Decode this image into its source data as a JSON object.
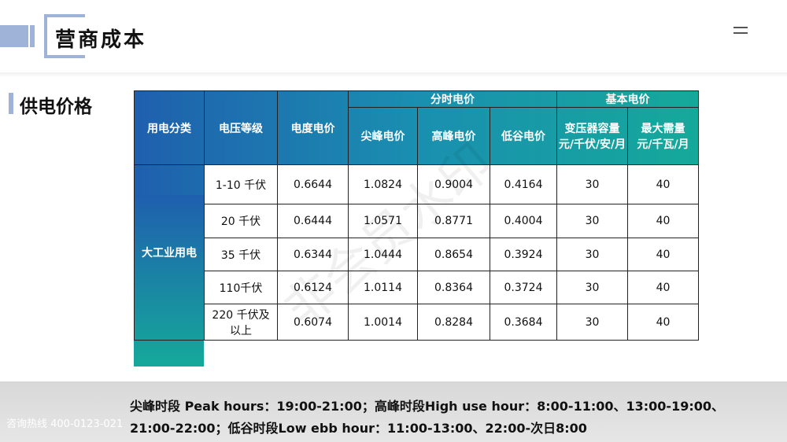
{
  "header": {
    "title": "营商成本"
  },
  "section": {
    "title": "供电价格"
  },
  "table": {
    "headers": {
      "category": "用电分类",
      "voltage": "电压等级",
      "energy": "电度电价",
      "tou": "分时电价",
      "basic": "基本电价",
      "peak": "尖峰电价",
      "high": "高峰电价",
      "low": "低谷电价",
      "capacity": [
        "变压器容量",
        "元/千伏/安/月"
      ],
      "demand": [
        "最大需量",
        "元/千瓦/月"
      ]
    },
    "category_label": "大工业用电",
    "rows": [
      [
        "1-10 千伏",
        0.6644,
        1.0824,
        0.9004,
        0.4164,
        30,
        40
      ],
      [
        "20 千伏",
        0.6444,
        1.0571,
        0.8771,
        0.4004,
        30,
        40
      ],
      [
        "35 千伏",
        0.6344,
        1.0444,
        0.8654,
        0.3924,
        30,
        40
      ],
      [
        "110千伏",
        0.6124,
        1.0114,
        0.8364,
        0.3724,
        30,
        40
      ],
      [
        "220 千伏及以上",
        0.6074,
        1.0014,
        0.8284,
        0.3684,
        30,
        40
      ]
    ]
  },
  "footer": {
    "note": [
      "尖峰时段 Peak hours：19:00-21:00；高峰时段High use hour：8:00-11:00、13:00-19:00、",
      "21:00-22:00；低谷时段Low ebb hour：11:00-13:00、22:00-次日8:00"
    ],
    "hotline": "咨询热线 400-0123-021"
  },
  "watermark": "非会员水印"
}
